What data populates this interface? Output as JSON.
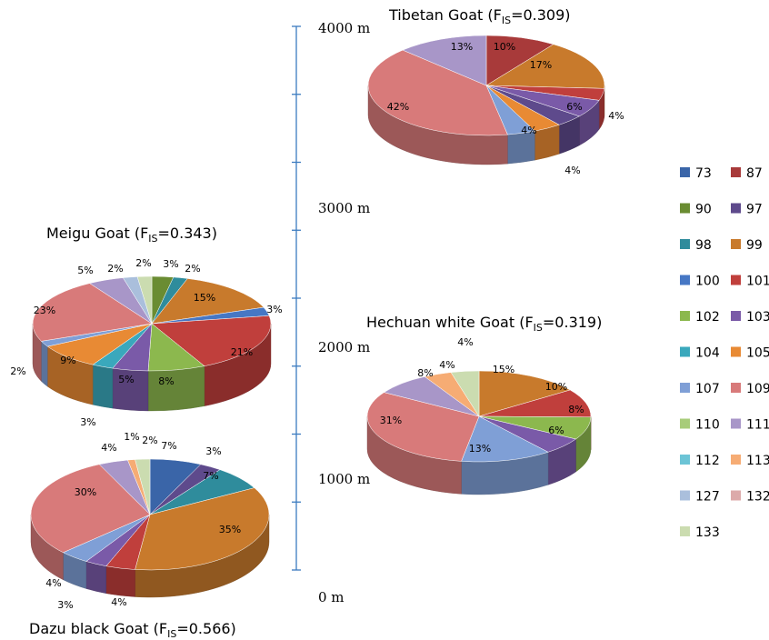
{
  "chart_data": {
    "type": "pie",
    "altitude_axis": {
      "tick_labels": [
        "4000 m",
        "3000 m",
        "2000 m",
        "1000 m",
        "0 m"
      ],
      "values": [
        4000,
        3000,
        2000,
        1000,
        0
      ],
      "color": "#3b7bbf"
    },
    "legend": {
      "placement": "right",
      "entries": [
        {
          "label": "73",
          "color": "#3a65a8"
        },
        {
          "label": "87",
          "color": "#a83a3a"
        },
        {
          "label": "90",
          "color": "#6a8c32"
        },
        {
          "label": "97",
          "color": "#5e4a8c"
        },
        {
          "label": "98",
          "color": "#2f8c9c"
        },
        {
          "label": "99",
          "color": "#c87a2c"
        },
        {
          "label": "100",
          "color": "#4677c4"
        },
        {
          "label": "101",
          "color": "#c03f3c"
        },
        {
          "label": "102",
          "color": "#8cb84e"
        },
        {
          "label": "103",
          "color": "#7a5aa8"
        },
        {
          "label": "104",
          "color": "#3aa8bc"
        },
        {
          "label": "105",
          "color": "#e88a34"
        },
        {
          "label": "107",
          "color": "#7f9fd6"
        },
        {
          "label": "109",
          "color": "#d87a7a"
        },
        {
          "label": "110",
          "color": "#a8cc7a"
        },
        {
          "label": "111",
          "color": "#a896c8"
        },
        {
          "label": "112",
          "color": "#6cc4d6"
        },
        {
          "label": "113",
          "color": "#f6ac74"
        },
        {
          "label": "127",
          "color": "#aabfdc"
        },
        {
          "label": "132",
          "color": "#dcaaaa"
        },
        {
          "label": "133",
          "color": "#cbdcb0"
        }
      ]
    },
    "pies": [
      {
        "id": "tibetan",
        "title_prefix": "Tibetan Goat (F",
        "title_sub": "IS",
        "title_suffix": "=0.309)",
        "slices": [
          {
            "allele": "87",
            "value": 10,
            "label": "10%"
          },
          {
            "allele": "99",
            "value": 17,
            "label": "17%"
          },
          {
            "allele": "101",
            "value": 4,
            "label": ""
          },
          {
            "allele": "103",
            "value": 6,
            "label": "6%"
          },
          {
            "allele": "97",
            "value": 4,
            "label": "4%"
          },
          {
            "allele": "105",
            "value": 4,
            "label": "4%"
          },
          {
            "allele": "107",
            "value": 4,
            "label": "4%"
          },
          {
            "allele": "109",
            "value": 42,
            "label": "42%"
          },
          {
            "allele": "111",
            "value": 13,
            "label": "13%"
          }
        ]
      },
      {
        "id": "meigu",
        "title_prefix": "Meigu Goat (F",
        "title_sub": "IS",
        "title_suffix": "=0.343)",
        "slices": [
          {
            "allele": "90",
            "value": 3,
            "label": "3%"
          },
          {
            "allele": "98",
            "value": 2,
            "label": "2%"
          },
          {
            "allele": "99",
            "value": 15,
            "label": "15%"
          },
          {
            "allele": "100",
            "value": 3,
            "label": "3%"
          },
          {
            "allele": "101",
            "value": 21,
            "label": "21%"
          },
          {
            "allele": "102",
            "value": 8,
            "label": "8%"
          },
          {
            "allele": "103",
            "value": 5,
            "label": "5%"
          },
          {
            "allele": "104",
            "value": 3,
            "label": "3%"
          },
          {
            "allele": "105",
            "value": 9,
            "label": "9%"
          },
          {
            "allele": "107",
            "value": 2,
            "label": "2%"
          },
          {
            "allele": "109",
            "value": 23,
            "label": "23%"
          },
          {
            "allele": "111",
            "value": 5,
            "label": "5%"
          },
          {
            "allele": "127",
            "value": 2,
            "label": "2%"
          },
          {
            "allele": "133",
            "value": 2,
            "label": "2%"
          }
        ]
      },
      {
        "id": "hechuan",
        "title_prefix": "Hechuan white Goat (F",
        "title_sub": "IS",
        "title_suffix": "=0.319)",
        "slices": [
          {
            "allele": "99",
            "value": 15,
            "label": "15%"
          },
          {
            "allele": "101",
            "value": 10,
            "label": "10%"
          },
          {
            "allele": "102",
            "value": 8,
            "label": "8%"
          },
          {
            "allele": "103",
            "value": 6,
            "label": "6%"
          },
          {
            "allele": "107",
            "value": 13,
            "label": "13%"
          },
          {
            "allele": "109",
            "value": 31,
            "label": "31%"
          },
          {
            "allele": "111",
            "value": 8,
            "label": "8%"
          },
          {
            "allele": "113",
            "value": 4,
            "label": "4%"
          },
          {
            "allele": "133",
            "value": 4,
            "label": "4%"
          }
        ]
      },
      {
        "id": "dazu",
        "title_prefix": "Dazu black Goat (F",
        "title_sub": "IS",
        "title_suffix": "=0.566)",
        "slices": [
          {
            "allele": "73",
            "value": 7,
            "label": "7%"
          },
          {
            "allele": "97",
            "value": 3,
            "label": "3%"
          },
          {
            "allele": "98",
            "value": 7,
            "label": "7%"
          },
          {
            "allele": "99",
            "value": 35,
            "label": "35%"
          },
          {
            "allele": "101",
            "value": 4,
            "label": "4%"
          },
          {
            "allele": "103",
            "value": 3,
            "label": "3%"
          },
          {
            "allele": "107",
            "value": 4,
            "label": "4%"
          },
          {
            "allele": "109",
            "value": 30,
            "label": "30%"
          },
          {
            "allele": "111",
            "value": 4,
            "label": "4%"
          },
          {
            "allele": "113",
            "value": 1,
            "label": "1%"
          },
          {
            "allele": "133",
            "value": 2,
            "label": "2%"
          }
        ]
      }
    ]
  }
}
